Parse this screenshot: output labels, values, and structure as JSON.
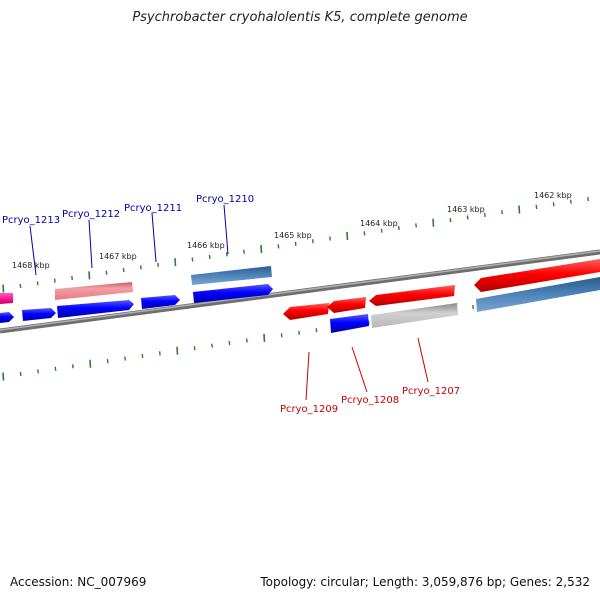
{
  "title": "Psychrobacter cryohalolentis K5, complete genome",
  "footer": {
    "accession": "Accession: NC_007969",
    "summary": "Topology: circular; Length: 3,059,876 bp; Genes: 2,532"
  },
  "kbp_labels": [
    "1468 kbp",
    "1467 kbp",
    "1466 kbp",
    "1465 kbp",
    "1464 kbp",
    "1463 kbp",
    "1462 kbp"
  ],
  "gene_labels": {
    "plus": [
      "Pcryo_1213",
      "Pcryo_1212",
      "Pcryo_1211",
      "Pcryo_1210"
    ],
    "minus": [
      "Pcryo_1209",
      "Pcryo_1208",
      "Pcryo_1207"
    ]
  },
  "colors": {
    "plus_label": "#0000aa",
    "minus_label": "#cc0000",
    "tick": "#2e7d32",
    "backbone": "#808080",
    "blue": "#0000ff",
    "red": "#ff0000",
    "pink": "#e88088",
    "magenta": "#ff2a9a",
    "steel": "#3f73a8",
    "gray": "#b8b8b8"
  }
}
